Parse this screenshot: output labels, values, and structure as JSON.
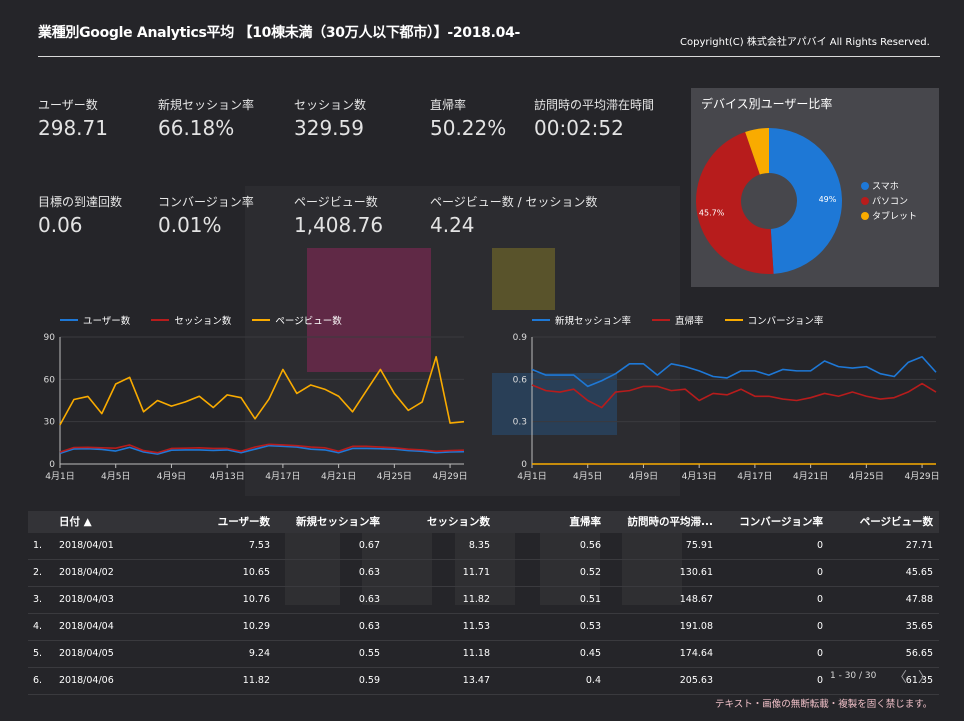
{
  "header": {
    "title": "業種別Google Analytics平均 【10棟未満（30万人以下都市）】-2018.04-",
    "copyright": "Copyright(C) 株式会社アパバイ All Rights Reserved."
  },
  "kpis": [
    {
      "label": "ユーザー数",
      "value": "298.71"
    },
    {
      "label": "新規セッション率",
      "value": "66.18%"
    },
    {
      "label": "セッション数",
      "value": "329.59"
    },
    {
      "label": "直帰率",
      "value": "50.22%"
    },
    {
      "label": "訪問時の平均滞在時間",
      "value": "00:02:52"
    },
    {
      "label": "目標の到達回数",
      "value": "0.06"
    },
    {
      "label": "コンバージョン率",
      "value": "0.01%"
    },
    {
      "label": "ページビュー数",
      "value": "1,408.76"
    },
    {
      "label": "ページビュー数 / セッション数",
      "value": "4.24"
    }
  ],
  "colors": {
    "blue": "#1e78d6",
    "red": "#b71c1c",
    "yellow": "#f9ab00",
    "background": "#252529",
    "panel": "#47474c"
  },
  "chart_data": [
    {
      "type": "pie",
      "title": "デバイス別ユーザー比率",
      "categories": [
        "スマホ",
        "パソコン",
        "タブレット"
      ],
      "values": [
        49,
        45.7,
        5.3
      ],
      "data_labels": [
        "49%",
        "45.7%",
        ""
      ],
      "colors": [
        "#1e78d6",
        "#b71c1c",
        "#f9ab00"
      ],
      "legend": "right",
      "donut": true
    },
    {
      "type": "line",
      "ylim": [
        0,
        90
      ],
      "yticks": [
        "0",
        "30",
        "60",
        "90"
      ],
      "xtick_labels": [
        "4月1日",
        "4月5日",
        "4月9日",
        "4月13日",
        "4月17日",
        "4月21日",
        "4月25日",
        "4月29日"
      ],
      "legend": "top-left",
      "series": [
        {
          "name": "ユーザー数",
          "color": "#1e78d6",
          "values": [
            7.5,
            10.7,
            10.8,
            10.3,
            9.2,
            11.8,
            8.5,
            7,
            9.8,
            10,
            10,
            9.6,
            10,
            8,
            10.5,
            13,
            12.5,
            12,
            10.5,
            10,
            8,
            11,
            11,
            10.8,
            10.5,
            9.5,
            9,
            8,
            8.5,
            8.7
          ]
        },
        {
          "name": "セッション数",
          "color": "#b71c1c",
          "values": [
            8.4,
            11.7,
            11.8,
            11.5,
            11.2,
            13.5,
            9.5,
            8,
            11,
            11.2,
            11.5,
            11,
            11,
            9,
            12,
            14,
            13.5,
            13,
            12,
            11.5,
            9,
            12.5,
            12.5,
            12,
            11.5,
            10.5,
            10,
            9,
            9.5,
            9.8
          ]
        },
        {
          "name": "ページビュー数",
          "color": "#f9ab00",
          "values": [
            27.7,
            45.7,
            47.9,
            35.7,
            56.7,
            61.4,
            37,
            45,
            41,
            44,
            48,
            40,
            49,
            47,
            32,
            46,
            67,
            50,
            56,
            53,
            48,
            37,
            52,
            67,
            50,
            38,
            44,
            76,
            29,
            30
          ]
        }
      ]
    },
    {
      "type": "line",
      "ylim": [
        0,
        0.9
      ],
      "yticks": [
        "0",
        "0.3",
        "0.6",
        "0.9"
      ],
      "xtick_labels": [
        "4月1日",
        "4月5日",
        "4月9日",
        "4月13日",
        "4月17日",
        "4月21日",
        "4月25日",
        "4月29日"
      ],
      "legend": "top-left",
      "series": [
        {
          "name": "新規セッション率",
          "color": "#1e78d6",
          "values": [
            0.67,
            0.63,
            0.63,
            0.63,
            0.55,
            0.59,
            0.64,
            0.71,
            0.71,
            0.63,
            0.71,
            0.69,
            0.66,
            0.62,
            0.61,
            0.66,
            0.66,
            0.63,
            0.67,
            0.66,
            0.66,
            0.73,
            0.69,
            0.68,
            0.69,
            0.64,
            0.62,
            0.72,
            0.76,
            0.65
          ]
        },
        {
          "name": "直帰率",
          "color": "#b71c1c",
          "values": [
            0.56,
            0.52,
            0.51,
            0.53,
            0.45,
            0.4,
            0.51,
            0.52,
            0.55,
            0.55,
            0.52,
            0.53,
            0.45,
            0.5,
            0.49,
            0.53,
            0.48,
            0.48,
            0.46,
            0.45,
            0.47,
            0.5,
            0.48,
            0.51,
            0.48,
            0.46,
            0.47,
            0.51,
            0.57,
            0.51
          ]
        },
        {
          "name": "コンバージョン率",
          "color": "#f9ab00",
          "values": [
            0,
            0,
            0,
            0,
            0,
            0,
            0,
            0,
            0,
            0,
            0,
            0,
            0,
            0,
            0,
            0,
            0,
            0,
            0,
            0,
            0,
            0,
            0,
            0,
            0,
            0,
            0,
            0,
            0,
            0
          ]
        }
      ]
    },
    {
      "type": "table",
      "columns": [
        "日付 ▲",
        "ユーザー数",
        "新規セッション率",
        "セッション数",
        "直帰率",
        "訪問時の平均滞...",
        "コンバージョン率",
        "ページビュー数"
      ],
      "rows": [
        [
          "1.",
          "2018/04/01",
          "7.53",
          "0.67",
          "8.35",
          "0.56",
          "75.91",
          "0",
          "27.71"
        ],
        [
          "2.",
          "2018/04/02",
          "10.65",
          "0.63",
          "11.71",
          "0.52",
          "130.61",
          "0",
          "45.65"
        ],
        [
          "3.",
          "2018/04/03",
          "10.76",
          "0.63",
          "11.82",
          "0.51",
          "148.67",
          "0",
          "47.88"
        ],
        [
          "4.",
          "2018/04/04",
          "10.29",
          "0.63",
          "11.53",
          "0.53",
          "191.08",
          "0",
          "35.65"
        ],
        [
          "5.",
          "2018/04/05",
          "9.24",
          "0.55",
          "11.18",
          "0.45",
          "174.64",
          "0",
          "56.65"
        ],
        [
          "6.",
          "2018/04/06",
          "11.82",
          "0.59",
          "13.47",
          "0.4",
          "205.63",
          "0",
          "61.35"
        ]
      ]
    }
  ],
  "pager": {
    "text": "1 - 30 / 30",
    "prev": "〈",
    "next": "〉"
  },
  "footer": "テキスト・画像の無断転載・複製を固く禁じます。"
}
